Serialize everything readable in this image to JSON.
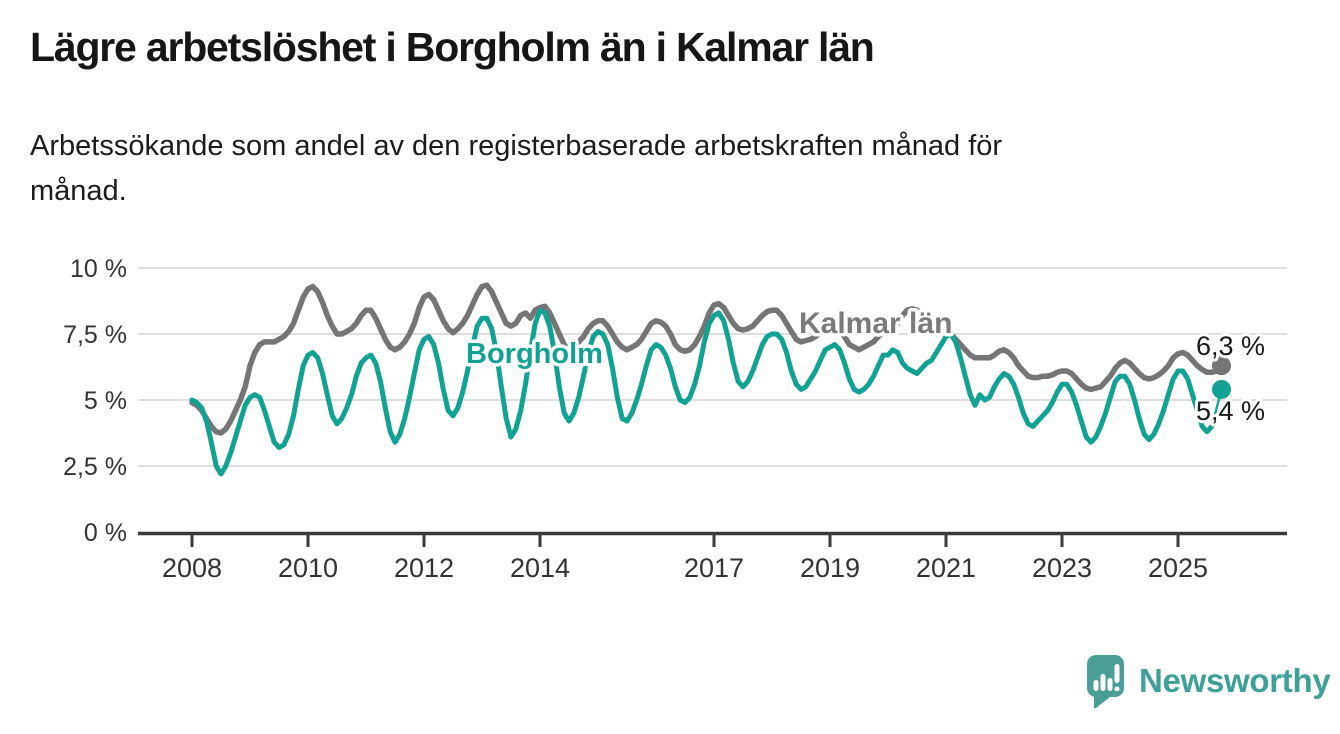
{
  "chart_data": {
    "type": "line",
    "title": "Lägre arbetslöshet i Borgholm än i Kalmar län",
    "subtitle_lines": [
      "Arbetssökande som andel av den registerbaserade arbetskraften månad för",
      "månad."
    ],
    "unit": "%",
    "grid": "horizontal",
    "legend": "inline-labels",
    "x_axis": {
      "start": "2008-01",
      "end": "2025-10",
      "frequency": "monthly",
      "tick_years": [
        2008,
        2010,
        2012,
        2014,
        2017,
        2019,
        2021,
        2023,
        2025
      ],
      "tick_labels": [
        "2008",
        "2010",
        "2012",
        "2014",
        "2017",
        "2019",
        "2021",
        "2023",
        "2025"
      ]
    },
    "y_axis": {
      "min": 0,
      "max": 10,
      "ticks": [
        {
          "value": 10,
          "label": "10 %"
        },
        {
          "value": 7.5,
          "label": "7,5 %"
        },
        {
          "value": 5,
          "label": "5 %"
        },
        {
          "value": 2.5,
          "label": "2,5 %"
        },
        {
          "value": 0,
          "label": "0 %"
        }
      ]
    },
    "series": [
      {
        "name": "Kalmar län",
        "color": "#757575",
        "end_label": "6,3 %",
        "end_value": 6.3,
        "values": [
          4.9,
          4.8,
          4.6,
          4.3,
          4.0,
          3.8,
          3.75,
          3.9,
          4.2,
          4.6,
          5.0,
          5.5,
          6.3,
          6.8,
          7.1,
          7.2,
          7.2,
          7.2,
          7.3,
          7.4,
          7.6,
          7.9,
          8.4,
          8.9,
          9.2,
          9.3,
          9.1,
          8.7,
          8.2,
          7.8,
          7.5,
          7.5,
          7.6,
          7.7,
          7.9,
          8.2,
          8.4,
          8.4,
          8.1,
          7.7,
          7.3,
          7.0,
          6.9,
          7.0,
          7.2,
          7.5,
          7.9,
          8.5,
          8.9,
          9.0,
          8.8,
          8.4,
          8.0,
          7.7,
          7.55,
          7.7,
          7.9,
          8.2,
          8.6,
          9.0,
          9.3,
          9.35,
          9.1,
          8.7,
          8.3,
          7.9,
          7.8,
          7.9,
          8.2,
          8.3,
          8.1,
          8.4,
          8.5,
          8.55,
          8.3,
          7.9,
          7.5,
          7.1,
          6.9,
          7.0,
          7.2,
          7.4,
          7.7,
          7.9,
          8.0,
          8.0,
          7.8,
          7.5,
          7.2,
          7.0,
          6.9,
          7.0,
          7.1,
          7.3,
          7.6,
          7.9,
          8.0,
          7.95,
          7.8,
          7.5,
          7.1,
          6.9,
          6.85,
          6.9,
          7.1,
          7.4,
          7.8,
          8.3,
          8.6,
          8.65,
          8.5,
          8.2,
          7.9,
          7.7,
          7.65,
          7.7,
          7.8,
          8.0,
          8.2,
          8.35,
          8.4,
          8.4,
          8.2,
          7.9,
          7.6,
          7.3,
          7.2,
          7.25,
          7.3,
          7.4,
          7.55,
          7.7,
          7.75,
          7.7,
          7.6,
          7.4,
          7.1,
          7.0,
          6.9,
          7.0,
          7.1,
          7.2,
          7.4,
          7.6,
          7.7,
          7.7,
          7.9,
          8.2,
          8.4,
          8.45,
          8.4,
          8.3,
          8.1,
          7.9,
          7.8,
          7.7,
          7.6,
          7.5,
          7.3,
          7.1,
          6.9,
          6.7,
          6.6,
          6.6,
          6.6,
          6.6,
          6.7,
          6.85,
          6.9,
          6.8,
          6.6,
          6.3,
          6.1,
          5.9,
          5.85,
          5.85,
          5.9,
          5.9,
          5.95,
          6.05,
          6.1,
          6.1,
          6.0,
          5.8,
          5.6,
          5.45,
          5.4,
          5.45,
          5.5,
          5.7,
          5.9,
          6.2,
          6.4,
          6.5,
          6.4,
          6.2,
          6.0,
          5.85,
          5.8,
          5.85,
          5.95,
          6.1,
          6.3,
          6.6,
          6.75,
          6.8,
          6.7,
          6.5,
          6.3,
          6.15,
          6.05,
          6.05,
          6.1,
          6.3
        ]
      },
      {
        "name": "Borgholm",
        "color": "#11A294",
        "end_label": "5,4 %",
        "end_value": 5.4,
        "values": [
          5.0,
          4.9,
          4.7,
          4.2,
          3.4,
          2.5,
          2.2,
          2.5,
          3.0,
          3.6,
          4.2,
          4.8,
          5.1,
          5.2,
          5.1,
          4.6,
          4.0,
          3.4,
          3.2,
          3.3,
          3.7,
          4.4,
          5.4,
          6.3,
          6.7,
          6.8,
          6.6,
          6.0,
          5.2,
          4.4,
          4.1,
          4.3,
          4.7,
          5.2,
          5.9,
          6.4,
          6.6,
          6.7,
          6.4,
          5.7,
          4.7,
          3.8,
          3.4,
          3.7,
          4.3,
          5.1,
          6.0,
          6.9,
          7.3,
          7.4,
          7.1,
          6.4,
          5.4,
          4.6,
          4.4,
          4.7,
          5.3,
          6.1,
          7.0,
          7.8,
          8.1,
          8.1,
          7.7,
          6.8,
          5.5,
          4.3,
          3.6,
          3.9,
          4.6,
          5.6,
          6.8,
          7.9,
          8.4,
          8.3,
          7.8,
          6.8,
          5.5,
          4.5,
          4.2,
          4.5,
          5.1,
          5.9,
          6.8,
          7.4,
          7.6,
          7.5,
          7.1,
          6.2,
          5.1,
          4.3,
          4.2,
          4.5,
          5.0,
          5.6,
          6.3,
          6.9,
          7.1,
          7.0,
          6.7,
          6.2,
          5.5,
          5.0,
          4.9,
          5.1,
          5.6,
          6.3,
          7.2,
          7.9,
          8.2,
          8.3,
          8.0,
          7.3,
          6.4,
          5.7,
          5.5,
          5.7,
          6.1,
          6.6,
          7.1,
          7.4,
          7.5,
          7.5,
          7.3,
          6.8,
          6.1,
          5.6,
          5.4,
          5.5,
          5.8,
          6.1,
          6.5,
          6.9,
          7.0,
          7.1,
          6.9,
          6.4,
          5.8,
          5.4,
          5.3,
          5.4,
          5.6,
          5.9,
          6.3,
          6.7,
          6.7,
          6.9,
          6.8,
          6.4,
          6.2,
          6.1,
          6.0,
          6.2,
          6.4,
          6.5,
          6.8,
          7.1,
          7.4,
          7.5,
          7.2,
          6.6,
          5.9,
          5.2,
          4.8,
          5.2,
          5.0,
          5.1,
          5.5,
          5.8,
          6.0,
          5.9,
          5.6,
          5.1,
          4.5,
          4.1,
          4.0,
          4.2,
          4.4,
          4.6,
          4.9,
          5.3,
          5.6,
          5.6,
          5.3,
          4.8,
          4.2,
          3.6,
          3.4,
          3.6,
          4.0,
          4.5,
          5.1,
          5.7,
          5.9,
          5.9,
          5.6,
          5.0,
          4.3,
          3.7,
          3.5,
          3.7,
          4.1,
          4.6,
          5.2,
          5.8,
          6.1,
          6.1,
          5.8,
          5.2,
          4.6,
          4.0,
          3.8,
          4.0,
          4.4,
          5.4
        ]
      }
    ]
  },
  "logo": {
    "text": "Newsworthy",
    "color": "#3EA099",
    "icon": "bar-chart-speech-bubble-icon"
  },
  "colors": {
    "background": "#ffffff",
    "gridline": "#d9d9d9",
    "axis": "#3a3a3a",
    "tick_text": "#333333",
    "title_text": "#161616"
  }
}
